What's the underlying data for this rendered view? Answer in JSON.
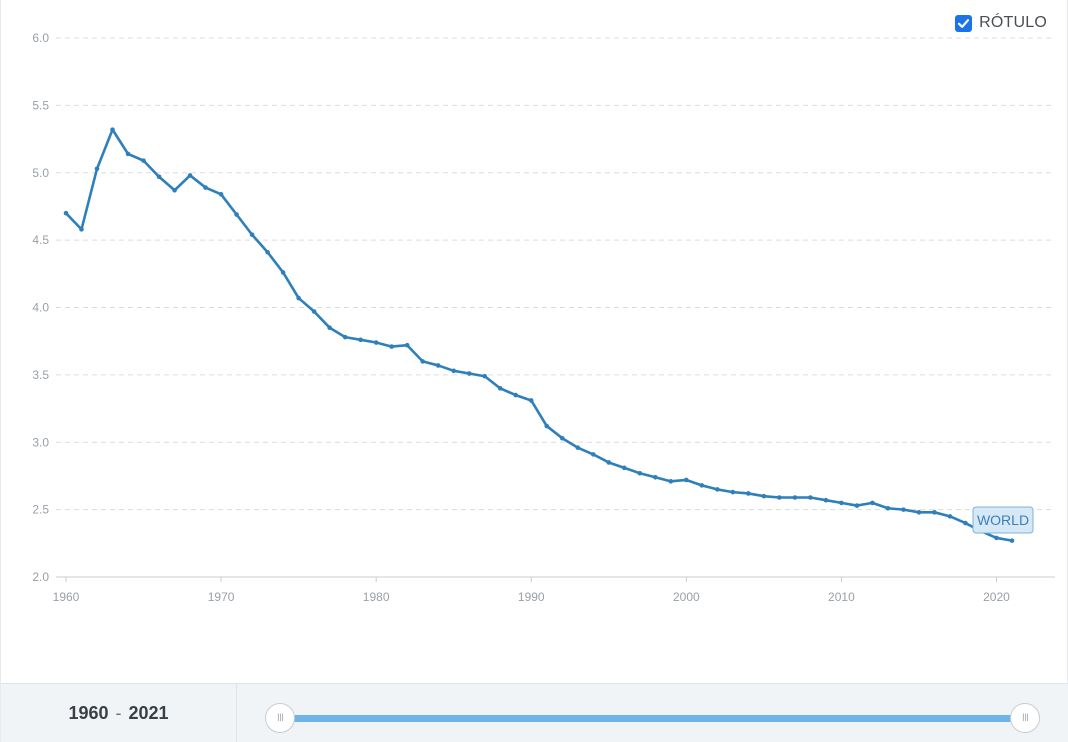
{
  "legend": {
    "label": "RÓTULO",
    "checked": true
  },
  "range": {
    "start": "1960",
    "separator": "-",
    "end": "2021"
  },
  "slider": {
    "handle_glyph": "III"
  },
  "colors": {
    "line": "#2e7fba",
    "grid": "#dadde0",
    "tick_text": "#9aa0a6",
    "accent": "#1a73e8",
    "slider": "#6fb4e8",
    "world_label_bg": "#d6e8f6",
    "world_label_border": "#7fb2d9"
  },
  "chart_data": {
    "type": "line",
    "ylim": [
      2.0,
      6.0
    ],
    "xlim": [
      1960,
      2021
    ],
    "yticks": [
      "2.0",
      "2.5",
      "3.0",
      "3.5",
      "4.0",
      "4.5",
      "5.0",
      "5.5",
      "6.0"
    ],
    "xticks": [
      "1960",
      "1970",
      "1980",
      "1990",
      "2000",
      "2010",
      "2020"
    ],
    "grid": true,
    "series": [
      {
        "name": "WORLD",
        "x": [
          1960,
          1961,
          1962,
          1963,
          1964,
          1965,
          1966,
          1967,
          1968,
          1969,
          1970,
          1971,
          1972,
          1973,
          1974,
          1975,
          1976,
          1977,
          1978,
          1979,
          1980,
          1981,
          1982,
          1983,
          1984,
          1985,
          1986,
          1987,
          1988,
          1989,
          1990,
          1991,
          1992,
          1993,
          1994,
          1995,
          1996,
          1997,
          1998,
          1999,
          2000,
          2001,
          2002,
          2003,
          2004,
          2005,
          2006,
          2007,
          2008,
          2009,
          2010,
          2011,
          2012,
          2013,
          2014,
          2015,
          2016,
          2017,
          2018,
          2019,
          2020,
          2021
        ],
        "values": [
          4.7,
          4.58,
          5.03,
          5.32,
          5.14,
          5.09,
          4.97,
          4.87,
          4.98,
          4.89,
          4.84,
          4.69,
          4.54,
          4.41,
          4.26,
          4.07,
          3.97,
          3.85,
          3.78,
          3.76,
          3.74,
          3.71,
          3.72,
          3.6,
          3.57,
          3.53,
          3.51,
          3.49,
          3.4,
          3.35,
          3.31,
          3.12,
          3.03,
          2.96,
          2.91,
          2.85,
          2.81,
          2.77,
          2.74,
          2.71,
          2.72,
          2.68,
          2.65,
          2.63,
          2.62,
          2.6,
          2.59,
          2.59,
          2.59,
          2.57,
          2.55,
          2.53,
          2.55,
          2.51,
          2.5,
          2.48,
          2.48,
          2.45,
          2.4,
          2.34,
          2.29,
          2.27
        ]
      }
    ]
  }
}
